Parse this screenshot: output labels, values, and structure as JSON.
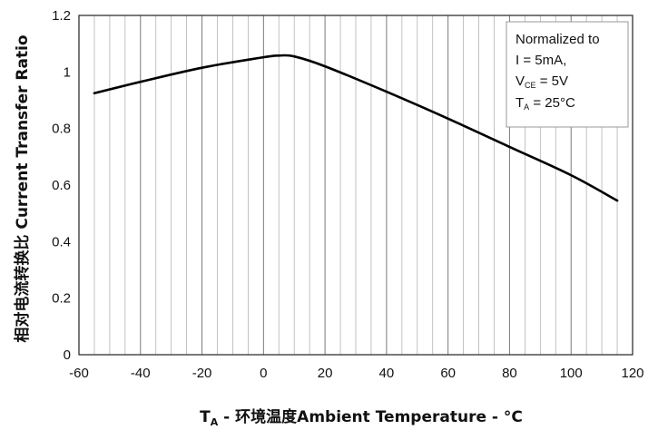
{
  "chart_data": {
    "type": "line",
    "title": "",
    "xlabel": {
      "t": "T",
      "sub": "A",
      "rest": " - 环境温度Ambient Temperature - °C"
    },
    "ylabel": "相对电流转换比 Current Transfer Ratio",
    "xlim": [
      -60,
      120
    ],
    "ylim": [
      0,
      1.2
    ],
    "xticks": [
      -60,
      -40,
      -20,
      0,
      20,
      40,
      60,
      80,
      100,
      120
    ],
    "yticks": [
      0,
      0.2,
      0.4,
      0.6,
      0.8,
      1,
      1.2
    ],
    "ytick_labels": [
      "0",
      "0.2",
      "0.4",
      "0.6",
      "0.8",
      "1",
      "1.2"
    ],
    "x_minor_step": 5,
    "grid": "vertical",
    "legend_position": "top-right",
    "legend": {
      "line1": "Normalized to",
      "line2": "I   = 5mA,",
      "line3": {
        "main": "V",
        "sub": "CE",
        "rest": " = 5V"
      },
      "line4": {
        "main": "T",
        "sub": "A",
        "rest": " = 25°C"
      }
    },
    "series": [
      {
        "x": [
          -55,
          -40,
          -20,
          0,
          5,
          10,
          20,
          40,
          60,
          80,
          100,
          115
        ],
        "y": [
          0.925,
          0.965,
          1.015,
          1.052,
          1.058,
          1.055,
          1.02,
          0.93,
          0.835,
          0.735,
          0.635,
          0.545
        ]
      }
    ]
  }
}
